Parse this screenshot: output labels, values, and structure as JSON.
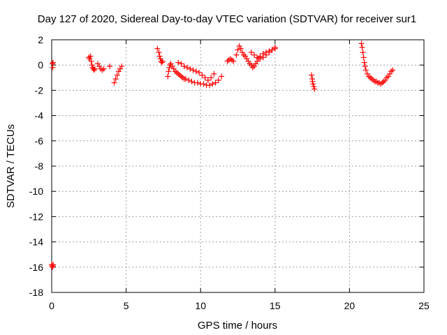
{
  "chart_data": {
    "type": "scatter",
    "title": "Day 127 of 2020, Sidereal Day-to-day VTEC variation (SDTVAR) for receiver sur1",
    "xlabel": "GPS time / hours",
    "ylabel": "SDTVAR / TECUs",
    "xlim": [
      0,
      25
    ],
    "ylim": [
      -18,
      2
    ],
    "xticks": [
      0,
      5,
      10,
      15,
      20,
      25
    ],
    "yticks": [
      2,
      0,
      -2,
      -4,
      -6,
      -8,
      -10,
      -12,
      -14,
      -16,
      -18
    ],
    "grid": true,
    "marker": "+",
    "color": "#ff0000",
    "series": [
      {
        "name": "SDTVAR",
        "x": [
          0.0,
          0.03,
          0.05,
          0.08,
          0.1,
          0.05,
          0.07,
          0.09,
          2.5,
          2.55,
          2.6,
          2.65,
          2.7,
          2.75,
          2.8,
          2.85,
          2.9,
          3.1,
          3.2,
          3.3,
          3.4,
          3.5,
          3.9,
          4.2,
          4.3,
          4.4,
          4.5,
          4.6,
          4.7,
          7.1,
          7.2,
          7.25,
          7.3,
          7.35,
          7.4,
          7.45,
          7.8,
          7.85,
          7.9,
          7.95,
          8.0,
          8.1,
          8.2,
          8.3,
          8.4,
          8.5,
          8.6,
          8.7,
          8.8,
          8.9,
          9.0,
          9.2,
          9.4,
          9.6,
          9.8,
          10.0,
          10.2,
          10.4,
          10.6,
          10.8,
          11.0,
          11.2,
          11.4,
          8.5,
          8.7,
          8.9,
          9.1,
          9.3,
          9.5,
          9.7,
          9.9,
          10.1,
          10.3,
          10.5,
          10.7,
          10.9,
          11.8,
          11.9,
          12.0,
          12.1,
          12.2,
          12.4,
          12.5,
          12.6,
          12.7,
          12.8,
          12.9,
          13.0,
          13.1,
          13.2,
          13.3,
          13.4,
          13.5,
          13.6,
          13.7,
          13.8,
          13.9,
          14.0,
          14.2,
          14.4,
          14.6,
          14.8,
          15.0,
          13.4,
          13.6,
          13.8,
          14.0,
          14.2,
          14.4,
          14.6,
          14.8,
          15.0,
          17.45,
          17.5,
          17.52,
          17.55,
          17.6,
          17.65,
          20.8,
          20.85,
          20.9,
          20.95,
          21.0,
          21.05,
          21.1,
          21.2,
          21.3,
          21.4,
          21.5,
          21.6,
          21.7,
          21.8,
          21.9,
          22.0,
          22.1,
          22.2,
          22.3,
          22.4,
          22.5,
          22.6,
          22.7,
          22.8,
          22.9
        ],
        "y": [
          -15.8,
          -15.9,
          -16.0,
          -15.9,
          -15.8,
          0.1,
          -0.2,
          0.2,
          0.6,
          0.5,
          0.7,
          0.3,
          0.0,
          -0.2,
          -0.3,
          -0.4,
          -0.3,
          0.1,
          -0.1,
          -0.3,
          -0.4,
          -0.3,
          -0.1,
          -1.4,
          -1.1,
          -0.8,
          -0.5,
          -0.3,
          -0.1,
          1.3,
          1.0,
          0.7,
          0.5,
          0.3,
          0.2,
          0.3,
          -0.9,
          -0.5,
          -0.2,
          0.0,
          0.1,
          -0.1,
          -0.3,
          -0.5,
          -0.6,
          -0.7,
          -0.8,
          -0.9,
          -1.0,
          -1.1,
          -1.1,
          -1.2,
          -1.3,
          -1.4,
          -1.4,
          -1.5,
          -1.5,
          -1.6,
          -1.6,
          -1.5,
          -1.4,
          -1.2,
          -0.9,
          0.2,
          0.1,
          -0.1,
          -0.2,
          -0.3,
          -0.4,
          -0.5,
          -0.6,
          -0.8,
          -1.0,
          -1.2,
          -1.0,
          -0.7,
          0.3,
          0.4,
          0.5,
          0.4,
          0.3,
          0.8,
          1.2,
          1.5,
          1.3,
          1.0,
          0.8,
          0.7,
          0.5,
          0.3,
          0.1,
          0.0,
          -0.2,
          -0.1,
          0.1,
          0.3,
          0.5,
          0.7,
          0.9,
          1.0,
          1.1,
          1.2,
          1.3,
          1.0,
          0.8,
          0.6,
          0.5,
          0.6,
          0.8,
          1.0,
          1.2,
          1.4,
          -0.8,
          -1.1,
          -1.3,
          -1.5,
          -1.7,
          -1.9,
          1.7,
          1.4,
          1.0,
          0.6,
          0.2,
          -0.1,
          -0.4,
          -0.7,
          -0.9,
          -1.0,
          -1.1,
          -1.2,
          -1.3,
          -1.3,
          -1.4,
          -1.4,
          -1.5,
          -1.4,
          -1.3,
          -1.2,
          -1.0,
          -0.9,
          -0.7,
          -0.5,
          -0.4
        ]
      }
    ]
  }
}
